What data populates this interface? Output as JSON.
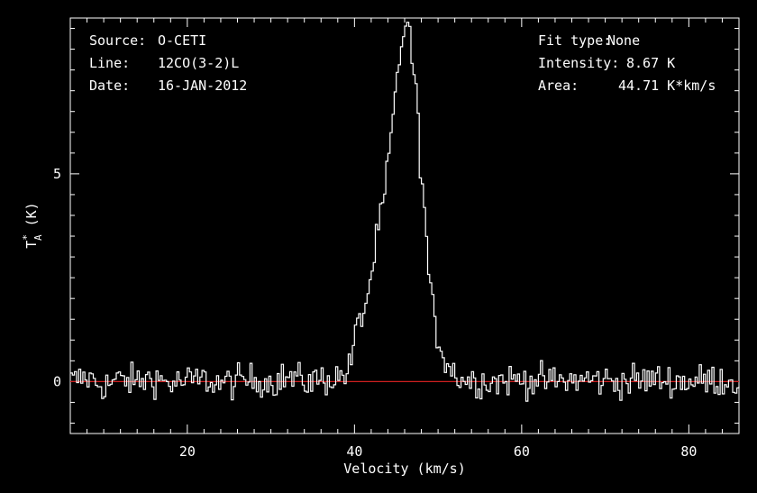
{
  "chart_data": {
    "type": "line",
    "title": "",
    "xlabel": "Velocity (km/s)",
    "ylabel": {
      "base": "T",
      "sup": "*",
      "sub": "A",
      "unit": " (K)"
    },
    "xlim": [
      6,
      86
    ],
    "ylim": [
      -1.25,
      8.75
    ],
    "x_ticks": [
      20,
      40,
      60,
      80
    ],
    "y_ticks": [
      0,
      5
    ],
    "info_left": [
      {
        "key": "Source:",
        "value": "O-CETI"
      },
      {
        "key": "Line:",
        "value": "12CO(3-2)L"
      },
      {
        "key": "Date:",
        "value": "16-JAN-2012"
      }
    ],
    "info_right": [
      {
        "key": "Fit type:",
        "value": "None"
      },
      {
        "key": "Intensity:",
        "value": "8.67 K"
      },
      {
        "key": "Area:",
        "value": "44.71 K*km/s"
      }
    ],
    "series": [
      {
        "color": "#ffffff",
        "x": [
          6,
          8,
          10,
          12,
          14,
          16,
          18,
          20,
          22,
          24,
          26,
          28,
          30,
          32,
          34,
          36,
          38,
          39.5,
          40,
          41,
          42,
          42.5,
          43,
          43.5,
          44,
          44.5,
          45,
          45.5,
          46,
          46.5,
          47,
          47.5,
          48,
          48.5,
          49,
          49.5,
          50,
          51,
          52,
          53,
          56,
          60,
          64,
          68,
          72,
          76,
          80,
          84,
          86
        ],
        "y": [
          0,
          0.1,
          -0.1,
          0.05,
          0,
          0.1,
          -0.05,
          0,
          0.05,
          -0.05,
          0,
          0.05,
          0,
          0.1,
          0,
          0.05,
          0.1,
          0.3,
          1.1,
          1.6,
          2.5,
          3.2,
          3.9,
          4.2,
          5.2,
          6.1,
          7.0,
          7.9,
          8.7,
          8.5,
          7.6,
          6.6,
          5.0,
          3.8,
          2.2,
          1.6,
          1.0,
          0.5,
          0.2,
          0.05,
          0,
          0.05,
          0,
          0.05,
          0,
          0.05,
          0,
          0.05,
          0
        ]
      }
    ],
    "baseline": {
      "y": 0,
      "color": "#d02020"
    }
  }
}
